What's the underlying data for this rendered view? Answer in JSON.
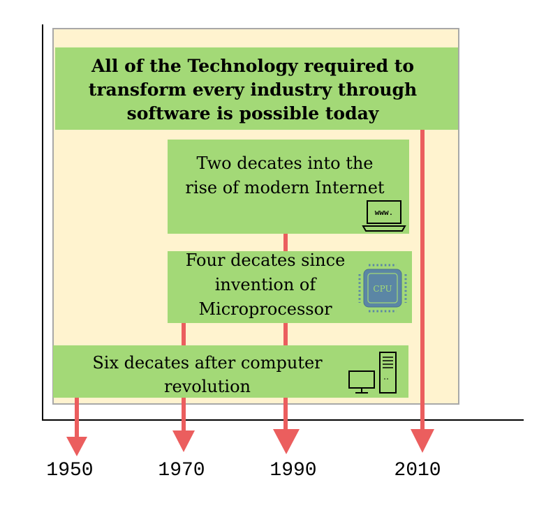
{
  "headline": {
    "lines": [
      "All of the Technology required to",
      "transform every industry through",
      "software is possible today"
    ]
  },
  "cards": {
    "internet": {
      "lines": [
        "Two decates into the",
        "rise of modern Internet"
      ],
      "icon": "laptop-www-icon",
      "icon_text": "www."
    },
    "microprocessor": {
      "lines": [
        "Four decates since",
        "invention of",
        "Microprocessor"
      ],
      "icon": "cpu-chip-icon",
      "icon_text": "CPU"
    },
    "computer": {
      "lines": [
        "Six decates after computer",
        "revolution"
      ],
      "icon": "desktop-computer-icon"
    }
  },
  "timeline": {
    "years": [
      "1950",
      "1970",
      "1990",
      "2010"
    ]
  },
  "colors": {
    "panel_bg": "#fff3cf",
    "panel_border": "#a8a8a8",
    "card_green": "#a3d977",
    "arrow_red": "#eb5e5e",
    "axis": "#000000",
    "cpu_blue": "#5b86a5"
  }
}
